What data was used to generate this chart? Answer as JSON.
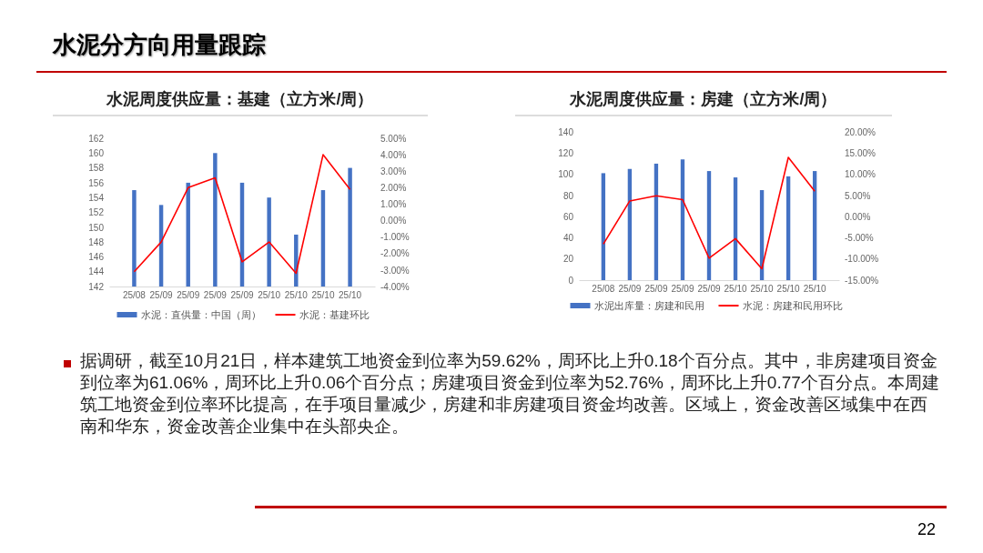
{
  "chart_data": [
    {
      "type": "other",
      "title": "水泥分方向用量跟踪",
      "annotations": [
        "据调研，截至10月21日，样本建筑工地资金到位率为59.62%，周环比上升0.18个百分点。其中，非房建项目资金到位率为61.06%，周环比上升0.06个百分点；房建项目资金到位率为52.76%，周环比上升0.77个百分点。本周建筑工地资金到位率环比提高，在手项目量减少，房建和非房建项目资金均改善。区域上，资金改善区域集中在西南和华东，资金改善企业集中在头部央企。",
        "22"
      ]
    },
    {
      "type": "bar",
      "title": "水泥周度供应量：基建（立方米/周）",
      "categories": [
        "25/08",
        "25/09",
        "25/09",
        "25/09",
        "25/09",
        "25/10",
        "25/10",
        "25/10",
        "25/10"
      ],
      "series": [
        {
          "name": "水泥：直供量：中国（周）",
          "type": "bar",
          "color": "#4472c4",
          "values": [
            155,
            153,
            156,
            160,
            156,
            154,
            149,
            155,
            158
          ]
        },
        {
          "name": "水泥：基建环比",
          "type": "line",
          "axis": "y2",
          "color": "#ff0000",
          "values": [
            -3.1,
            -1.3,
            2.0,
            2.6,
            -2.5,
            -1.3,
            -3.2,
            4.0,
            1.9
          ]
        }
      ],
      "ylim": [
        142,
        162
      ],
      "yticks": [
        142,
        144,
        146,
        148,
        150,
        152,
        154,
        156,
        158,
        160,
        162
      ],
      "y2lim": [
        -4,
        5
      ],
      "y2ticks": [
        {
          "value": -4,
          "label": "-4.00%"
        },
        {
          "value": -3,
          "label": "-3.00%"
        },
        {
          "value": -2,
          "label": "-2.00%"
        },
        {
          "value": -1,
          "label": "-1.00%"
        },
        {
          "value": 0,
          "label": "0.00%"
        },
        {
          "value": 1,
          "label": "1.00%"
        },
        {
          "value": 2,
          "label": "2.00%"
        },
        {
          "value": 3,
          "label": "3.00%"
        },
        {
          "value": 4,
          "label": "4.00%"
        },
        {
          "value": 5,
          "label": "5.00%"
        }
      ],
      "grid": false,
      "legend": "bottom",
      "marker": "none"
    },
    {
      "type": "bar",
      "title": "水泥周度供应量：房建（立方米/周）",
      "categories": [
        "25/08",
        "25/09",
        "25/09",
        "25/09",
        "25/09",
        "25/10",
        "25/10",
        "25/10",
        "25/10"
      ],
      "series": [
        {
          "name": "水泥出库量：房建和民用",
          "type": "bar",
          "color": "#4472c4",
          "values": [
            101,
            105,
            110,
            114,
            103,
            97,
            85,
            98,
            103
          ]
        },
        {
          "name": "水泥：房建和民用环比",
          "type": "line",
          "axis": "y2",
          "color": "#ff0000",
          "values": [
            -6.5,
            3.7,
            4.9,
            4.0,
            -9.8,
            -5.2,
            -12.3,
            14.0,
            6.0
          ]
        }
      ],
      "ylim": [
        0,
        140
      ],
      "yticks": [
        0,
        20,
        40,
        60,
        80,
        100,
        120,
        140
      ],
      "y2lim": [
        -15,
        20
      ],
      "y2ticks": [
        {
          "value": -15,
          "label": "-15.00%"
        },
        {
          "value": -10,
          "label": "-10.00%"
        },
        {
          "value": -5,
          "label": "-5.00%"
        },
        {
          "value": 0,
          "label": "0.00%"
        },
        {
          "value": 5,
          "label": "5.00%"
        },
        {
          "value": 10,
          "label": "10.00%"
        },
        {
          "value": 15,
          "label": "15.00%"
        },
        {
          "value": 20,
          "label": "20.00%"
        }
      ],
      "grid": false,
      "legend": "bottom",
      "marker": "none"
    }
  ]
}
